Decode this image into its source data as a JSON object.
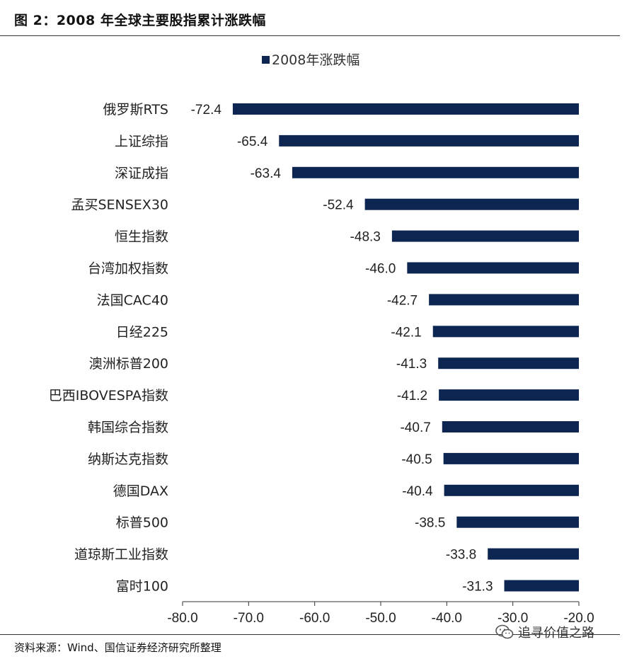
{
  "figure": {
    "title": "图 2：2008 年全球主要股指累计涨跌幅",
    "source": "资料来源：Wind、国信证券经济研究所整理",
    "watermark": "追寻价值之路"
  },
  "chart_data": {
    "type": "bar",
    "orientation": "horizontal",
    "title": "",
    "xlabel": "",
    "ylabel": "",
    "legend": {
      "position": "top-center",
      "entries": [
        "2008年涨跌幅"
      ]
    },
    "categories": [
      "俄罗斯RTS",
      "上证综指",
      "深证成指",
      "孟买SENSEX30",
      "恒生指数",
      "台湾加权指数",
      "法国CAC40",
      "日经225",
      "澳洲标普200",
      "巴西IBOVESPA指数",
      "韩国综合指数",
      "纳斯达克指数",
      "德国DAX",
      "标普500",
      "道琼斯工业指数",
      "富时100"
    ],
    "series": [
      {
        "name": "2008年涨跌幅",
        "color": "#0d2551",
        "values": [
          -72.4,
          -65.4,
          -63.4,
          -52.4,
          -48.3,
          -46.0,
          -42.7,
          -42.1,
          -41.3,
          -41.2,
          -40.7,
          -40.5,
          -40.4,
          -38.5,
          -33.8,
          -31.3
        ],
        "labels": [
          "-72.4",
          "-65.4",
          "-63.4",
          "-52.4",
          "-48.3",
          "-46.0",
          "-42.7",
          "-42.1",
          "-41.3",
          "-41.2",
          "-40.7",
          "-40.5",
          "-40.4",
          "-38.5",
          "-33.8",
          "-31.3"
        ]
      }
    ],
    "xlim": [
      -80,
      -20
    ],
    "xticks": [
      -80,
      -70,
      -60,
      -50,
      -40,
      -30,
      -20
    ],
    "xtick_labels": [
      "-80.0",
      "-70.0",
      "-60.0",
      "-50.0",
      "-40.0",
      "-30.0",
      "-20.0"
    ],
    "grid": false
  }
}
